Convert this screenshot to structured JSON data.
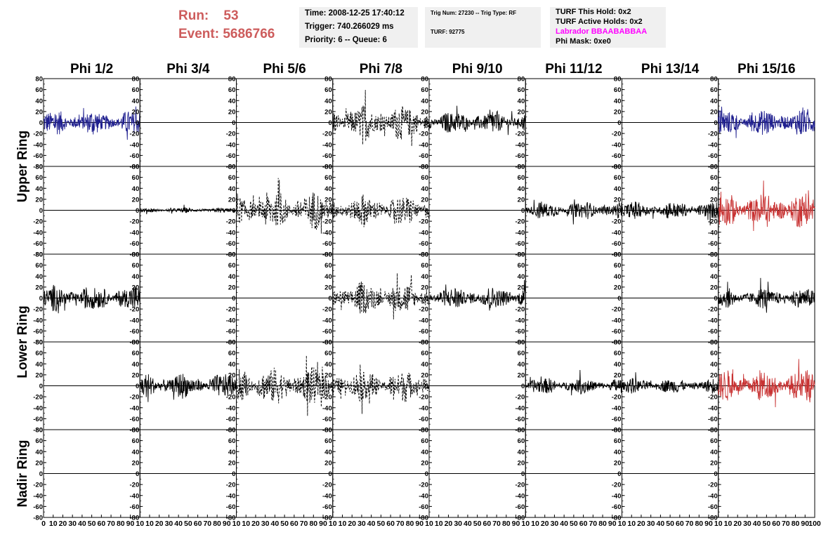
{
  "header": {
    "run_label": "Run:",
    "run_value": "53",
    "event_label": "Event:",
    "event_value": "5686766",
    "time": "Time: 2008-12-25 17:40:12",
    "trigger": "Trigger: 740.266029 ms",
    "priority": "Priority: 6 -- Queue: 6",
    "trig_num": "Trig Num: 27230 -- Trig Type: RF",
    "turf": "TURF: 92775",
    "turf_this_hold": "TURF This Hold: 0x2",
    "turf_active_holds": "TURF Active Holds: 0x2",
    "labrador": "Labrador BBAABABBAA",
    "phi_mask": "Phi Mask: 0xe0"
  },
  "colors": {
    "run_text": "#cd5c5c",
    "labrador_text": "#ff00ff",
    "blue_trace": "#1f1f8f",
    "red_trace": "#c83232",
    "black_trace": "#000000"
  },
  "chart_data": {
    "type": "line",
    "columns": [
      "Phi 1/2",
      "Phi 3/4",
      "Phi 5/6",
      "Phi 7/8",
      "Phi 9/10",
      "Phi 11/12",
      "Phi 13/14",
      "Phi 15/16"
    ],
    "rows": [
      "Upper Ring",
      "Lower Ring",
      "Nadir Ring"
    ],
    "ring_row_spans": [
      2,
      2,
      1
    ],
    "ylim": [
      -80,
      80
    ],
    "yticks": [
      -80,
      -60,
      -40,
      -20,
      0,
      20,
      40,
      60,
      80
    ],
    "xlim": [
      0,
      100
    ],
    "x_tick_labels": [
      "0",
      "10",
      "20",
      "30",
      "40",
      "50",
      "60",
      "70",
      "80",
      "90",
      "10",
      "10",
      "20",
      "30",
      "40",
      "50",
      "60",
      "70",
      "80",
      "90",
      "10",
      "10",
      "20",
      "30",
      "40",
      "50",
      "60",
      "70",
      "80",
      "90",
      "10",
      "10",
      "20",
      "30",
      "40",
      "50",
      "60",
      "70",
      "80",
      "90",
      "10",
      "10",
      "20",
      "30",
      "40",
      "50",
      "60",
      "70",
      "80",
      "90",
      "10",
      "10",
      "20",
      "30",
      "40",
      "50",
      "60",
      "70",
      "80",
      "90",
      "10",
      "10",
      "20",
      "30",
      "40",
      "50",
      "60",
      "70",
      "80",
      "90",
      "10",
      "10",
      "20",
      "30",
      "40",
      "50",
      "60",
      "70",
      "80",
      "90",
      "100"
    ],
    "panels": [
      [
        {
          "style": "blue",
          "amp": 20
        },
        {
          "style": "flat",
          "amp": 0
        },
        {
          "style": "flat",
          "amp": 0
        },
        {
          "style": "dashed",
          "amp": 28
        },
        {
          "style": "black",
          "amp": 18
        },
        {
          "style": "flat",
          "amp": 0
        },
        {
          "style": "flat",
          "amp": 0
        },
        {
          "style": "blue",
          "amp": 22
        }
      ],
      [
        {
          "style": "flat",
          "amp": 0
        },
        {
          "style": "black",
          "amp": 4
        },
        {
          "style": "dashed",
          "amp": 30
        },
        {
          "style": "dashed",
          "amp": 25
        },
        {
          "style": "flat",
          "amp": 0
        },
        {
          "style": "black",
          "amp": 14
        },
        {
          "style": "black",
          "amp": 14
        },
        {
          "style": "red",
          "amp": 28
        }
      ],
      [
        {
          "style": "black",
          "amp": 20
        },
        {
          "style": "flat",
          "amp": 0
        },
        {
          "style": "flat",
          "amp": 0
        },
        {
          "style": "dashed",
          "amp": 25
        },
        {
          "style": "black",
          "amp": 18
        },
        {
          "style": "flat",
          "amp": 0
        },
        {
          "style": "flat",
          "amp": 0
        },
        {
          "style": "black",
          "amp": 16
        }
      ],
      [
        {
          "style": "flat",
          "amp": 0
        },
        {
          "style": "black",
          "amp": 20
        },
        {
          "style": "dashed",
          "amp": 30
        },
        {
          "style": "dashed",
          "amp": 25
        },
        {
          "style": "flat",
          "amp": 0
        },
        {
          "style": "black",
          "amp": 13
        },
        {
          "style": "black",
          "amp": 12
        },
        {
          "style": "red",
          "amp": 25
        }
      ],
      [
        {
          "style": "flat",
          "amp": 0
        },
        {
          "style": "flat",
          "amp": 0
        },
        {
          "style": "flat",
          "amp": 0
        },
        {
          "style": "flat",
          "amp": 0
        },
        {
          "style": "flat",
          "amp": 0
        },
        {
          "style": "flat",
          "amp": 0
        },
        {
          "style": "flat",
          "amp": 0
        },
        {
          "style": "flat",
          "amp": 0
        }
      ]
    ]
  }
}
